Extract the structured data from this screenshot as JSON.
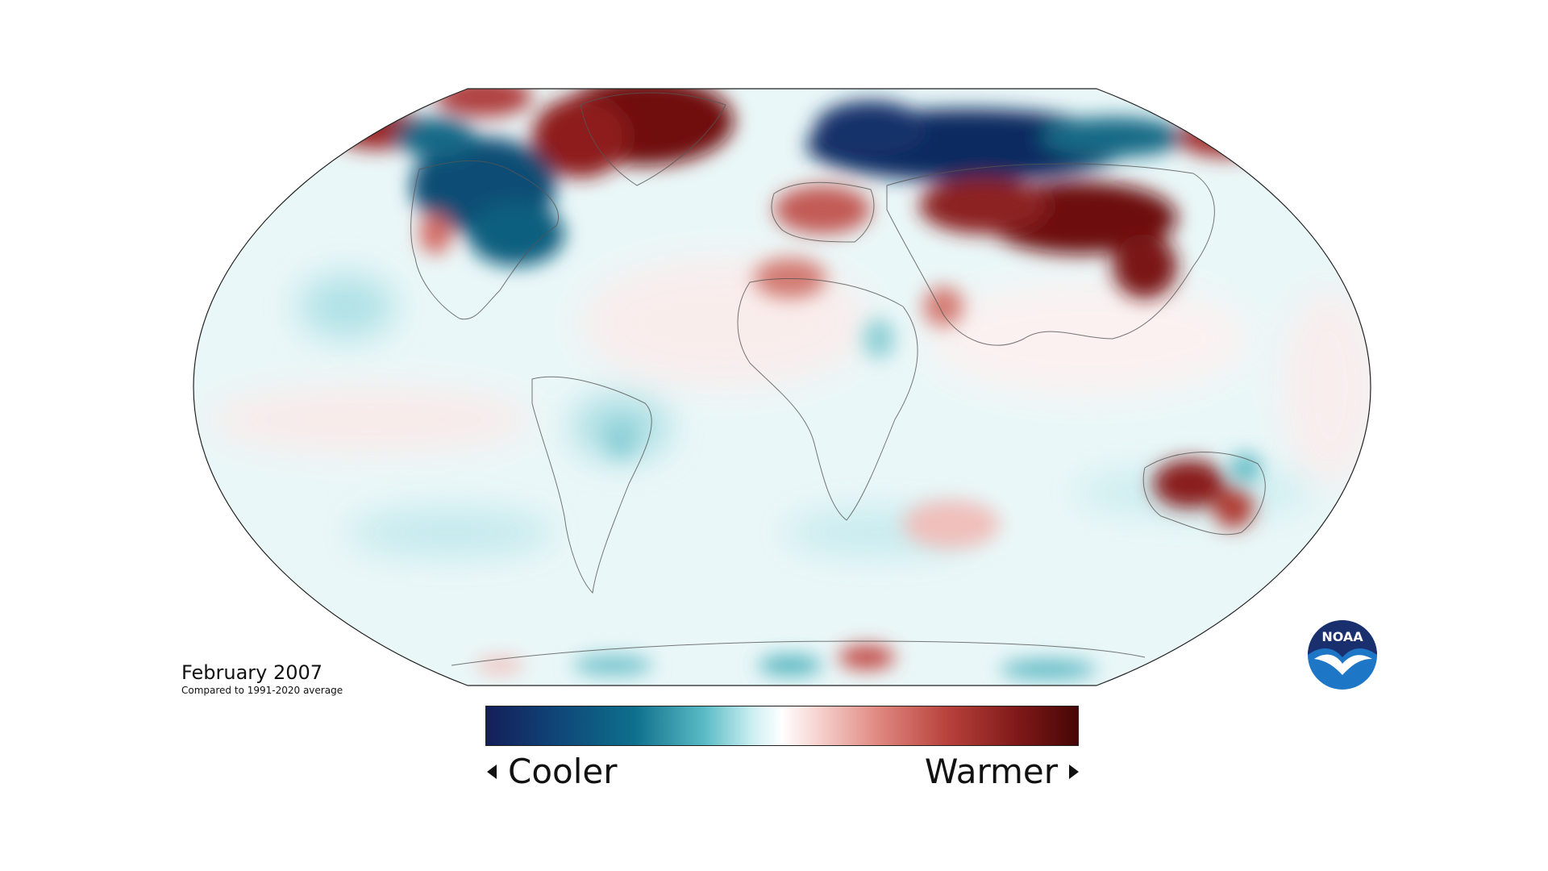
{
  "map": {
    "type": "temperature-anomaly-map",
    "projection": "Robinson",
    "color_scale": {
      "colors": [
        "#141e5a",
        "#0f4678",
        "#0e6f8c",
        "#5bbcc6",
        "#cdeff2",
        "#ffffff",
        "#f7d3d0",
        "#e08a82",
        "#b8413b",
        "#7e1818",
        "#470606"
      ],
      "left_label": "Cooler",
      "right_label": "Warmer"
    }
  },
  "caption": {
    "title": "February 2007",
    "subtitle": "Compared to 1991-2020 average"
  },
  "logo": {
    "text": "NOAA",
    "icon": "noaa-logo-icon"
  }
}
